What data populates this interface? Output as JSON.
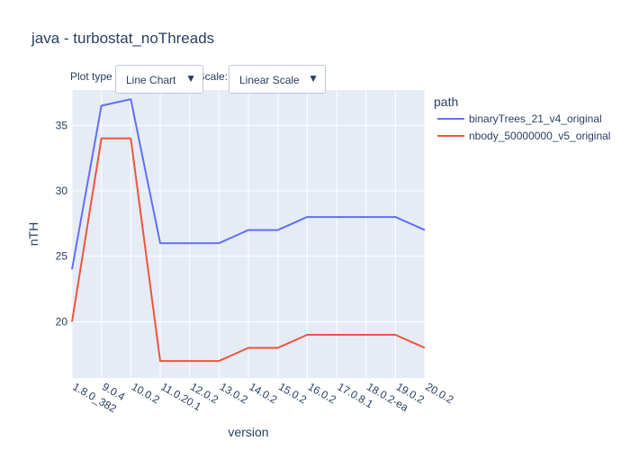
{
  "title": "java - turbostat_noThreads",
  "controls": {
    "plot_type_label": "Plot type",
    "plot_type_value": "Line Chart",
    "scale_label": "Y Scale:",
    "scale_value": "Linear Scale",
    "arrow_icon": "triangle-down-icon"
  },
  "chart_data": {
    "type": "line",
    "title": "java - turbostat_noThreads",
    "xlabel": "version",
    "ylabel": "nTH",
    "categories": [
      "1.8.0_382",
      "9.0.4",
      "10.0.2",
      "11.0.20.1",
      "12.0.2",
      "13.0.2",
      "14.0.2",
      "15.0.2",
      "16.0.2",
      "17.0.8.1",
      "18.0.2-ea",
      "19.0.2",
      "20.0.2"
    ],
    "ylim": [
      15.7,
      37.7
    ],
    "yticks": [
      20,
      25,
      30,
      35
    ],
    "grid": true,
    "legend_title": "path",
    "legend_position": "top-right",
    "series": [
      {
        "name": "binaryTrees_21_v4_original",
        "color": "#636efa",
        "values": [
          24,
          36.5,
          37,
          26,
          26,
          26,
          27,
          27,
          28,
          28,
          28,
          28,
          27
        ]
      },
      {
        "name": "nbody_50000000_v5_original",
        "color": "#ef553b",
        "values": [
          20,
          34,
          34,
          17,
          17,
          17,
          18,
          18,
          19,
          19,
          19,
          19,
          18
        ]
      }
    ]
  }
}
